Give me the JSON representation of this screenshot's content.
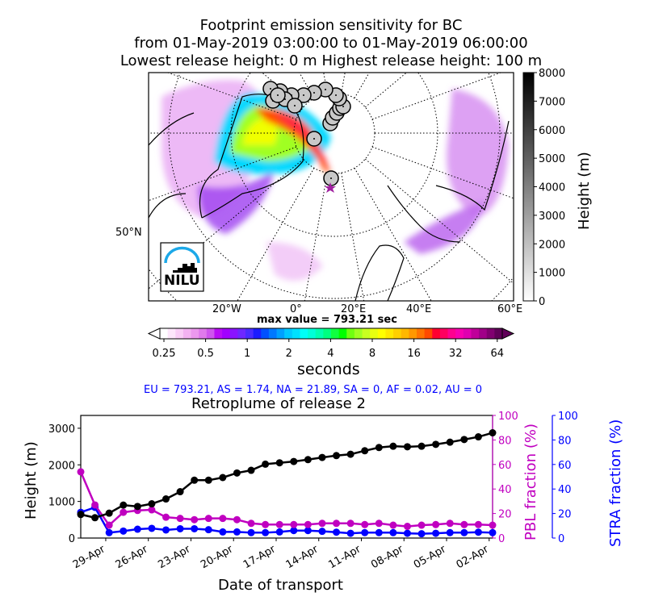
{
  "map": {
    "title_lines": [
      "Footprint emission sensitivity for BC",
      "from 01-May-2019 03:00:00 to 01-May-2019 06:00:00",
      "Lowest release height: 0 m      Highest release height: 100 m"
    ],
    "lat_label": "50°N",
    "lon_labels": [
      "20°W",
      "0°",
      "20°E",
      "40°E",
      "60°E"
    ],
    "logo_text": "NILU",
    "height_colorbar": {
      "label": "Height (m)",
      "ticks": [
        "0",
        "1000",
        "2000",
        "3000",
        "4000",
        "5000",
        "6000",
        "7000",
        "8000"
      ],
      "range": [
        0,
        8000
      ],
      "colormap": "greys"
    },
    "max_value": "max value = 793.21 sec",
    "colorbar": {
      "label": "seconds",
      "ticks": [
        "0.25",
        "0.5",
        "1",
        "2",
        "4",
        "8",
        "16",
        "32",
        "64"
      ],
      "colors": [
        "#ffffff",
        "#fde6fb",
        "#f9cdf6",
        "#f3b2f1",
        "#ec98ee",
        "#e07aec",
        "#cf55ee",
        "#b90df5",
        "#a200ff",
        "#8a14ff",
        "#6e28ff",
        "#4a2cff",
        "#1c1cff",
        "#0050ff",
        "#0078ff",
        "#00a0ff",
        "#00c8ff",
        "#00e0ff",
        "#00fff8",
        "#00ffd8",
        "#00ffb0",
        "#00ff80",
        "#10ff40",
        "#00ff00",
        "#70ff10",
        "#a0ff20",
        "#c8ff20",
        "#e8ff10",
        "#ffff00",
        "#ffe800",
        "#ffd000",
        "#ffb800",
        "#ff9800",
        "#ff7400",
        "#ff4a00",
        "#ff0030",
        "#ff0060",
        "#ff0090",
        "#f800b0",
        "#e000b0",
        "#c0009a",
        "#a00088",
        "#800070",
        "#600058"
      ]
    }
  },
  "regions_text": "EU = 793.21,  AS = 1.74,  NA = 21.89,  SA = 0,  AF = 0.02,  AU = 0",
  "chart_data": {
    "type": "line",
    "title": "Retroplume of release 2",
    "xlabel": "Date of transport",
    "ylabel": "Height (m)",
    "ylabel_right1": "PBL fraction (%)",
    "ylabel_right2": "STRA fraction (%)",
    "ylim": [
      0,
      3350
    ],
    "ylim_right": [
      0,
      100
    ],
    "yticks": [
      "0",
      "1000",
      "2000",
      "3000"
    ],
    "yticks_right": [
      "0",
      "20",
      "40",
      "60",
      "80",
      "100"
    ],
    "xticks": [
      "29-Apr",
      "26-Apr",
      "23-Apr",
      "20-Apr",
      "17-Apr",
      "14-Apr",
      "11-Apr",
      "08-Apr",
      "05-Apr",
      "02-Apr"
    ],
    "x": [
      "01-May",
      "30-Apr",
      "29-Apr",
      "28-Apr",
      "27-Apr",
      "26-Apr",
      "25-Apr",
      "24-Apr",
      "23-Apr",
      "22-Apr",
      "21-Apr",
      "20-Apr",
      "19-Apr",
      "18-Apr",
      "17-Apr",
      "16-Apr",
      "15-Apr",
      "14-Apr",
      "13-Apr",
      "12-Apr",
      "11-Apr",
      "10-Apr",
      "09-Apr",
      "08-Apr",
      "07-Apr",
      "06-Apr",
      "05-Apr",
      "04-Apr",
      "03-Apr",
      "02-Apr"
    ],
    "series": [
      {
        "axis": "left",
        "color": "#000000",
        "values": [
          644,
          556,
          680,
          900,
          863,
          936,
          1068,
          1266,
          1580,
          1580,
          1653,
          1778,
          1851,
          2019,
          2056,
          2092,
          2143,
          2202,
          2253,
          2290,
          2385,
          2473,
          2509,
          2494,
          2509,
          2560,
          2619,
          2692,
          2765,
          2875
        ]
      },
      {
        "axis": "right1",
        "color": "#c000c0",
        "values": [
          54,
          27,
          10.5,
          21,
          22.5,
          23,
          17,
          16,
          15,
          16,
          16,
          15,
          12,
          11,
          11,
          11,
          11,
          12,
          12,
          12,
          11,
          12,
          10.5,
          9.5,
          10.5,
          11,
          12,
          11,
          11,
          10.5
        ]
      },
      {
        "axis": "right2",
        "color": "#0000ff",
        "values": [
          21,
          25,
          4.4,
          5.7,
          7.2,
          7.9,
          6.6,
          7.6,
          7.6,
          6.8,
          5,
          5,
          4.4,
          4.4,
          5,
          6.1,
          6.1,
          5.5,
          4.8,
          3.9,
          4.4,
          4.4,
          4.4,
          3.9,
          3.5,
          3.9,
          4.4,
          4.4,
          4.8,
          4.4
        ]
      }
    ]
  }
}
